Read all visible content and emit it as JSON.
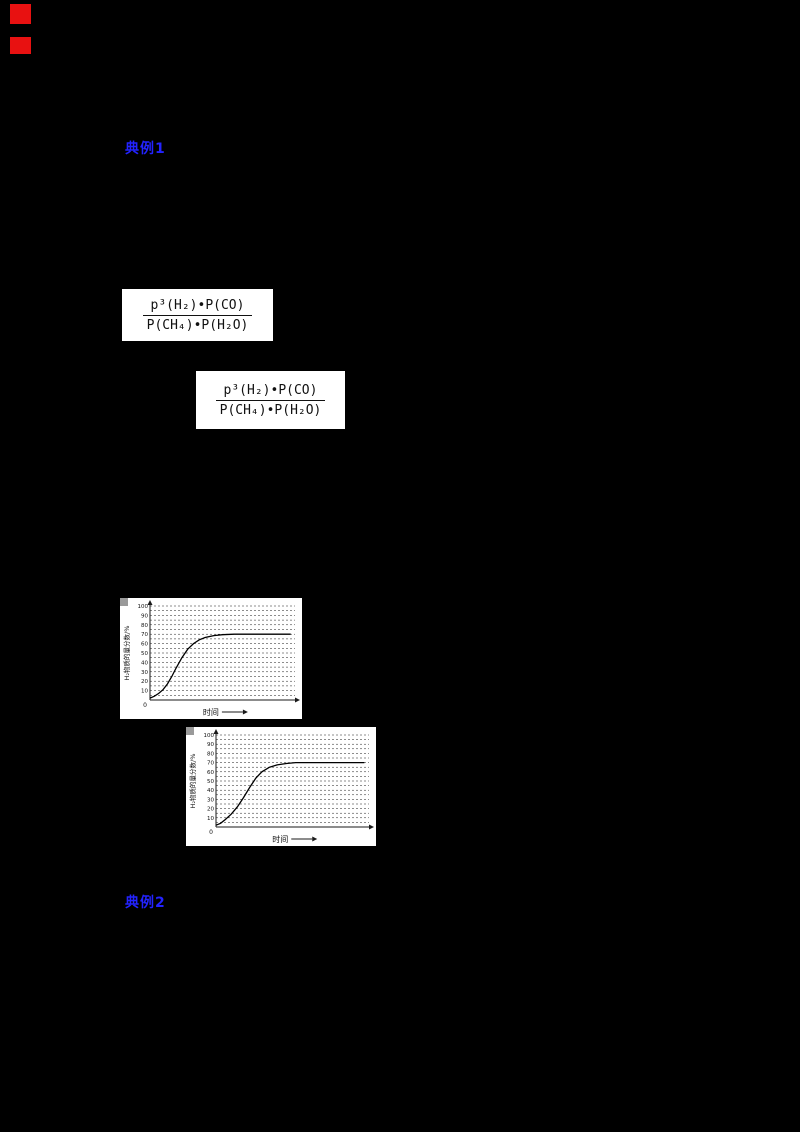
{
  "colors": {
    "page_bg": "#000000",
    "marker_red": "#e81111",
    "accent_blue": "#2323ff"
  },
  "markers": {
    "red_top": "",
    "red_bottom": ""
  },
  "sections": {
    "example1_label": "典例1",
    "example2_label": "典例2"
  },
  "formulas": {
    "kp_numerator": "p³(H₂)•P(CO)",
    "kp_denominator": "P(CH₄)•P(H₂O)"
  },
  "chart_data": [
    {
      "type": "line",
      "title": "",
      "xlabel": "时间",
      "ylabel": "H₂物质的量分数/%",
      "origin_label": "0",
      "ylim": [
        0,
        100
      ],
      "yticks": [
        10,
        20,
        30,
        40,
        50,
        60,
        70,
        80,
        90,
        100
      ],
      "grid": "dashed horizontal lines every 5 units",
      "legend": "none",
      "x_note": "time axis unlabeled, values are fraction of axis length",
      "series": [
        {
          "name": "H₂ mole fraction vs time",
          "x": [
            0,
            0.03,
            0.06,
            0.09,
            0.12,
            0.15,
            0.18,
            0.22,
            0.26,
            0.3,
            0.34,
            0.38,
            0.44,
            0.5,
            0.58,
            0.7,
            0.85,
            0.97
          ],
          "y": [
            2,
            4,
            7,
            11,
            17,
            25,
            34,
            45,
            54,
            60,
            64,
            66.5,
            68.5,
            69.5,
            70,
            70,
            70,
            70
          ]
        }
      ],
      "plateau_value": 70
    },
    {
      "type": "line",
      "title": "",
      "xlabel": "时间",
      "ylabel": "H₂物质的量分数/%",
      "origin_label": "0",
      "ylim": [
        0,
        100
      ],
      "yticks": [
        10,
        20,
        30,
        40,
        50,
        60,
        70,
        80,
        90,
        100
      ],
      "grid": "dashed horizontal lines every 5 units",
      "legend": "none",
      "x_note": "time axis unlabeled, values are fraction of axis length",
      "series": [
        {
          "name": "H₂ mole fraction vs time",
          "x": [
            0,
            0.03,
            0.06,
            0.1,
            0.14,
            0.18,
            0.22,
            0.26,
            0.3,
            0.35,
            0.4,
            0.46,
            0.52,
            0.6,
            0.72,
            0.85,
            0.97
          ],
          "y": [
            2,
            4,
            8,
            14,
            22,
            32,
            43,
            53,
            60,
            65,
            67.5,
            69,
            70,
            70,
            70,
            70,
            70
          ]
        }
      ],
      "plateau_value": 70
    }
  ]
}
